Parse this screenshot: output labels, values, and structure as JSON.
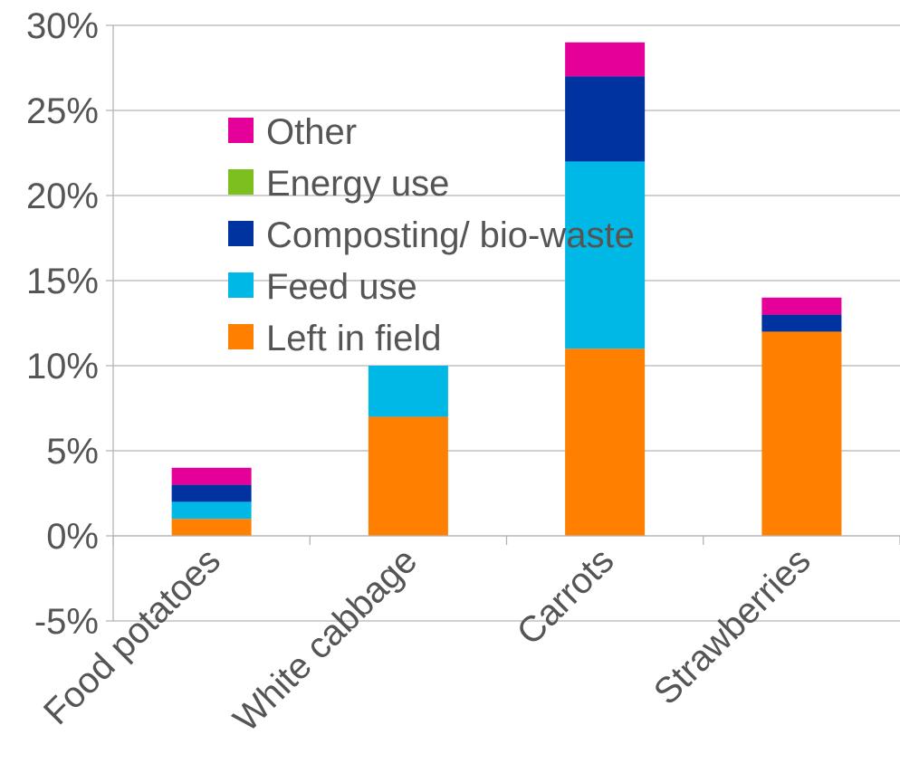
{
  "chart_data": {
    "type": "bar",
    "stacked": true,
    "categories": [
      "Food potatoes",
      "White cabbage",
      "Carrots",
      "Strawberries"
    ],
    "series": [
      {
        "name": "Left in field",
        "color": "#ff8000",
        "values": [
          1,
          7,
          11,
          12
        ]
      },
      {
        "name": "Feed use",
        "color": "#00b8e6",
        "values": [
          1,
          3,
          11,
          0
        ]
      },
      {
        "name": "Composting/ bio-waste",
        "color": "#0033a0",
        "values": [
          1,
          0,
          5,
          1
        ]
      },
      {
        "name": "Energy use",
        "color": "#7cbf1f",
        "values": [
          0,
          0,
          0,
          0
        ]
      },
      {
        "name": "Other",
        "color": "#e6009a",
        "values": [
          1,
          0,
          2,
          1
        ]
      }
    ],
    "ylim": [
      -5,
      30
    ],
    "yticks": [
      -5,
      0,
      5,
      10,
      15,
      20,
      25,
      30
    ],
    "y_unit": "%",
    "grid": true,
    "legend": "inside-top-left",
    "title": "",
    "xlabel": "",
    "ylabel": ""
  }
}
